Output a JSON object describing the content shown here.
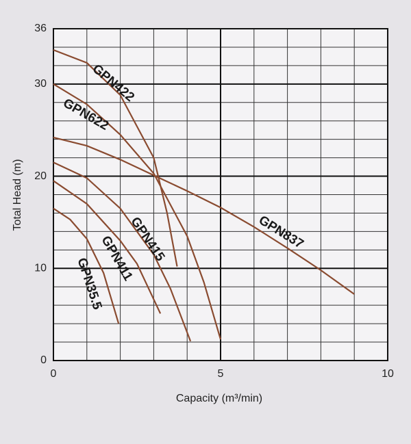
{
  "chart_data": {
    "type": "line",
    "xlabel": "Capacity (m³/min)",
    "ylabel": "Total Head (m)",
    "xlim": [
      0,
      10
    ],
    "xticks": [
      0,
      5,
      10
    ],
    "ylim": [
      0,
      36
    ],
    "yticks": [
      0,
      10,
      20,
      30,
      36
    ],
    "x_minor_grid": [
      1,
      2,
      3,
      4,
      6,
      7,
      8,
      9
    ],
    "y_minor_grid": [
      2,
      4,
      6,
      8,
      12,
      14,
      16,
      18,
      22,
      24,
      26,
      28,
      32,
      34
    ],
    "grid": true,
    "series": [
      {
        "name": "GPN422",
        "color": "#8a4b30",
        "x": [
          0,
          1,
          2,
          3,
          3.4,
          3.7
        ],
        "values": [
          33.7,
          32.3,
          28.8,
          22,
          16,
          10.2
        ]
      },
      {
        "name": "GPN622",
        "color": "#8a4b30",
        "x": [
          0,
          1,
          2,
          3,
          4,
          4.5,
          5
        ],
        "values": [
          30,
          27.8,
          24.5,
          20.3,
          13.5,
          8.5,
          2.3
        ]
      },
      {
        "name": "GPN837",
        "color": "#8a4b30",
        "x": [
          0,
          1,
          2,
          3,
          4,
          5,
          6,
          7,
          8,
          9
        ],
        "values": [
          24.2,
          23.3,
          21.8,
          20.1,
          18.4,
          16.6,
          14.5,
          12.2,
          9.8,
          7.2
        ]
      },
      {
        "name": "GPN415",
        "color": "#8a4b30",
        "x": [
          0,
          1,
          2,
          3,
          3.5,
          4.1
        ],
        "values": [
          21.5,
          19.8,
          16.5,
          11.5,
          7.8,
          2.1
        ]
      },
      {
        "name": "GPN411",
        "color": "#8a4b30",
        "x": [
          0,
          1,
          2,
          2.5,
          3.2
        ],
        "values": [
          19.5,
          17,
          13,
          10.5,
          5.1
        ]
      },
      {
        "name": "GPN35.5",
        "color": "#8a4b30",
        "x": [
          0,
          0.5,
          1,
          1.5,
          1.95
        ],
        "values": [
          16.5,
          15.3,
          13.2,
          9.5,
          4
        ]
      }
    ]
  }
}
